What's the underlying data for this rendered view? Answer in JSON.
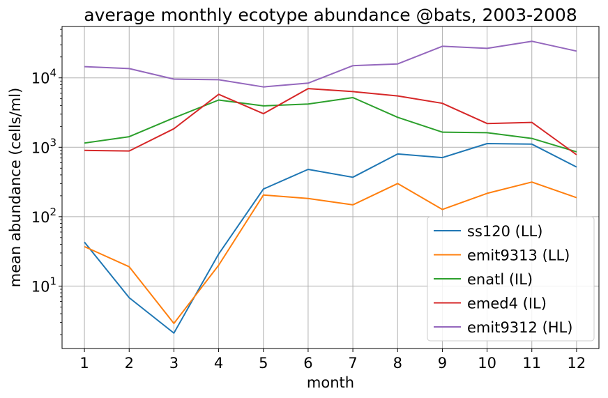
{
  "chart_data": {
    "type": "line",
    "title": "average monthly ecotype abundance @bats, 2003-2008",
    "xlabel": "month",
    "ylabel": "mean abundance (cells/ml)",
    "x": [
      1,
      2,
      3,
      4,
      5,
      6,
      7,
      8,
      9,
      10,
      11,
      12
    ],
    "xlim": [
      0.5,
      12.5
    ],
    "ylim": [
      1.26,
      55000
    ],
    "yscale": "log",
    "grid": true,
    "legend_position": "lower right",
    "y_ticks": [
      {
        "value": 10,
        "base": "10",
        "exp": "1"
      },
      {
        "value": 100,
        "base": "10",
        "exp": "2"
      },
      {
        "value": 1000,
        "base": "10",
        "exp": "3"
      },
      {
        "value": 10000,
        "base": "10",
        "exp": "4"
      }
    ],
    "series": [
      {
        "name": "ss120 (LL)",
        "color": "#1f77b4",
        "values": [
          43,
          6.8,
          2.1,
          29,
          250,
          480,
          370,
          800,
          710,
          1130,
          1110,
          520
        ]
      },
      {
        "name": "emit9313 (LL)",
        "color": "#ff7f0e",
        "values": [
          37,
          19,
          2.9,
          20,
          205,
          183,
          148,
          300,
          127,
          217,
          315,
          188
        ]
      },
      {
        "name": "enatl (IL)",
        "color": "#2ca02c",
        "values": [
          1150,
          1420,
          2650,
          4800,
          3950,
          4200,
          5200,
          2700,
          1650,
          1620,
          1340,
          860
        ]
      },
      {
        "name": "emed4 (IL)",
        "color": "#d62728",
        "values": [
          900,
          885,
          1850,
          5800,
          3050,
          7000,
          6350,
          5500,
          4300,
          2200,
          2280,
          780
        ]
      },
      {
        "name": "emit9312 (HL)",
        "color": "#9467bd",
        "values": [
          14500,
          13600,
          9600,
          9400,
          7400,
          8400,
          15000,
          15900,
          28500,
          26600,
          33700,
          24300
        ]
      }
    ]
  }
}
